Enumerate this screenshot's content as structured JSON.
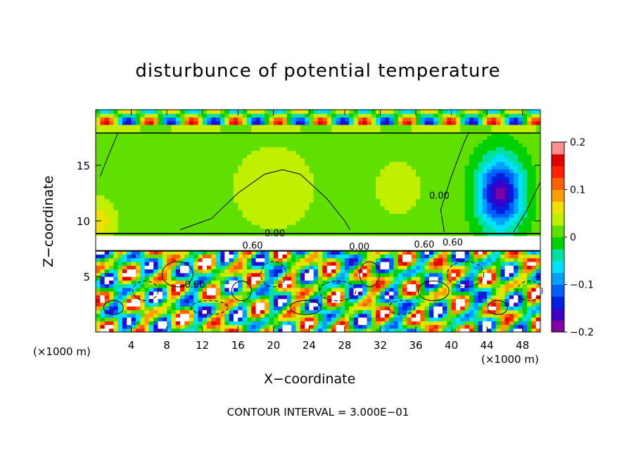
{
  "chart_data": {
    "type": "heatmap",
    "title": "disturbunce of potential temperature",
    "xlabel": "X−coordinate",
    "ylabel": "Z−coordinate",
    "x_unit": "(×1000 m)",
    "y_unit": "(×1000 m)",
    "xlim": [
      0,
      50
    ],
    "ylim": [
      0,
      20
    ],
    "x_ticks": [
      4,
      8,
      12,
      16,
      20,
      24,
      28,
      32,
      36,
      40,
      44,
      48
    ],
    "y_ticks": [
      5,
      10,
      15
    ],
    "colorbar": {
      "range": [
        -0.2,
        0.2
      ],
      "ticks": [
        {
          "value": 0.2,
          "label": "0.2"
        },
        {
          "value": 0.1,
          "label": "0.1"
        },
        {
          "value": 0,
          "label": "0"
        },
        {
          "value": -0.1,
          "label": "−0.1"
        },
        {
          "value": -0.2,
          "label": "−0.2"
        }
      ],
      "colors": [
        "#7f00a0",
        "#3a00c8",
        "#0020e0",
        "#0060ff",
        "#00a0ff",
        "#00e0ff",
        "#00e0a0",
        "#00d000",
        "#60e000",
        "#c0f000",
        "#f0e000",
        "#ffa000",
        "#ff6000",
        "#ff2000",
        "#e00000",
        "#ff9090"
      ]
    },
    "contour_labels": [
      "0.00",
      "0.60",
      "0.60",
      "0.60",
      "0.60",
      "0.00",
      "0.00"
    ],
    "contour_interval_text": "CONTOUR INTERVAL = 3.000E−01"
  }
}
